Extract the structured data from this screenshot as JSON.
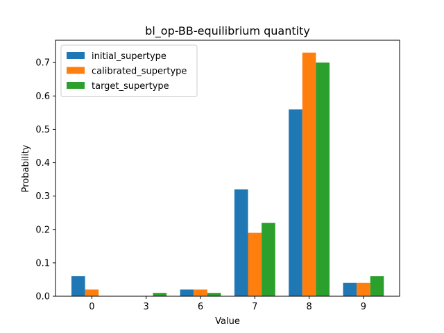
{
  "chart_data": {
    "type": "bar",
    "title": "bl_op-BB-equilibrium quantity",
    "xlabel": "Value",
    "ylabel": "Probability",
    "categories": [
      "0",
      "3",
      "6",
      "7",
      "8",
      "9"
    ],
    "series": [
      {
        "name": "initial_supertype",
        "color": "#1f77b4",
        "values": [
          0.06,
          0.0,
          0.02,
          0.32,
          0.56,
          0.04
        ]
      },
      {
        "name": "calibrated_supertype",
        "color": "#ff7f0e",
        "values": [
          0.02,
          0.0,
          0.02,
          0.19,
          0.73,
          0.04
        ]
      },
      {
        "name": "target_supertype",
        "color": "#2ca02c",
        "values": [
          0.0,
          0.01,
          0.01,
          0.22,
          0.7,
          0.06
        ]
      }
    ],
    "ylim": [
      0,
      0.767
    ],
    "yticks": [
      0.0,
      0.1,
      0.2,
      0.3,
      0.4,
      0.5,
      0.6,
      0.7
    ],
    "ytick_labels": [
      "0.0",
      "0.1",
      "0.2",
      "0.3",
      "0.4",
      "0.5",
      "0.6",
      "0.7"
    ],
    "legend_position": "top-left",
    "grid": false
  }
}
